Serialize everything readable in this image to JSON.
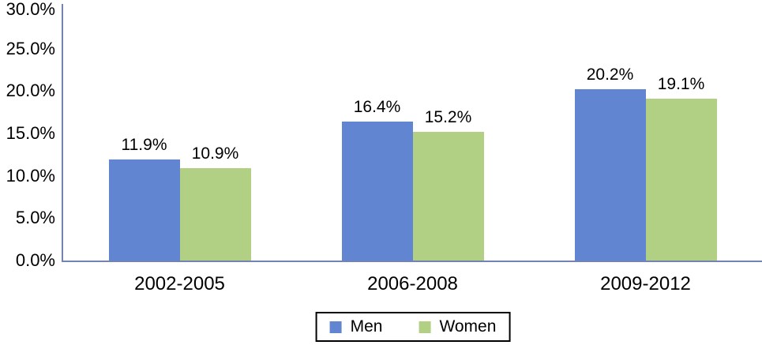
{
  "chart_data": {
    "type": "bar",
    "title": "",
    "xlabel": "",
    "ylabel": "",
    "categories": [
      "2002-2005",
      "2006-2008",
      "2009-2012"
    ],
    "series": [
      {
        "name": "Men",
        "color": "#6285d1",
        "values": [
          11.9,
          16.4,
          20.2
        ],
        "labels": [
          "11.9%",
          "16.4%",
          "20.2%"
        ]
      },
      {
        "name": "Women",
        "color": "#b2d083",
        "values": [
          10.9,
          15.2,
          19.1
        ],
        "labels": [
          "10.9%",
          "15.2%",
          "19.1%"
        ]
      }
    ],
    "ylim": [
      0,
      30
    ],
    "ytick_step": 5,
    "ytick_labels": [
      "0.0%",
      "5.0%",
      "10.0%",
      "15.0%",
      "20.0%",
      "25.0%",
      "30.0%"
    ],
    "grid": false,
    "legend": {
      "position": "bottom",
      "entries": [
        "Men",
        "Women"
      ]
    },
    "axis_color": "#7384b4",
    "text_color": "#000000",
    "background": "#ffffff"
  }
}
